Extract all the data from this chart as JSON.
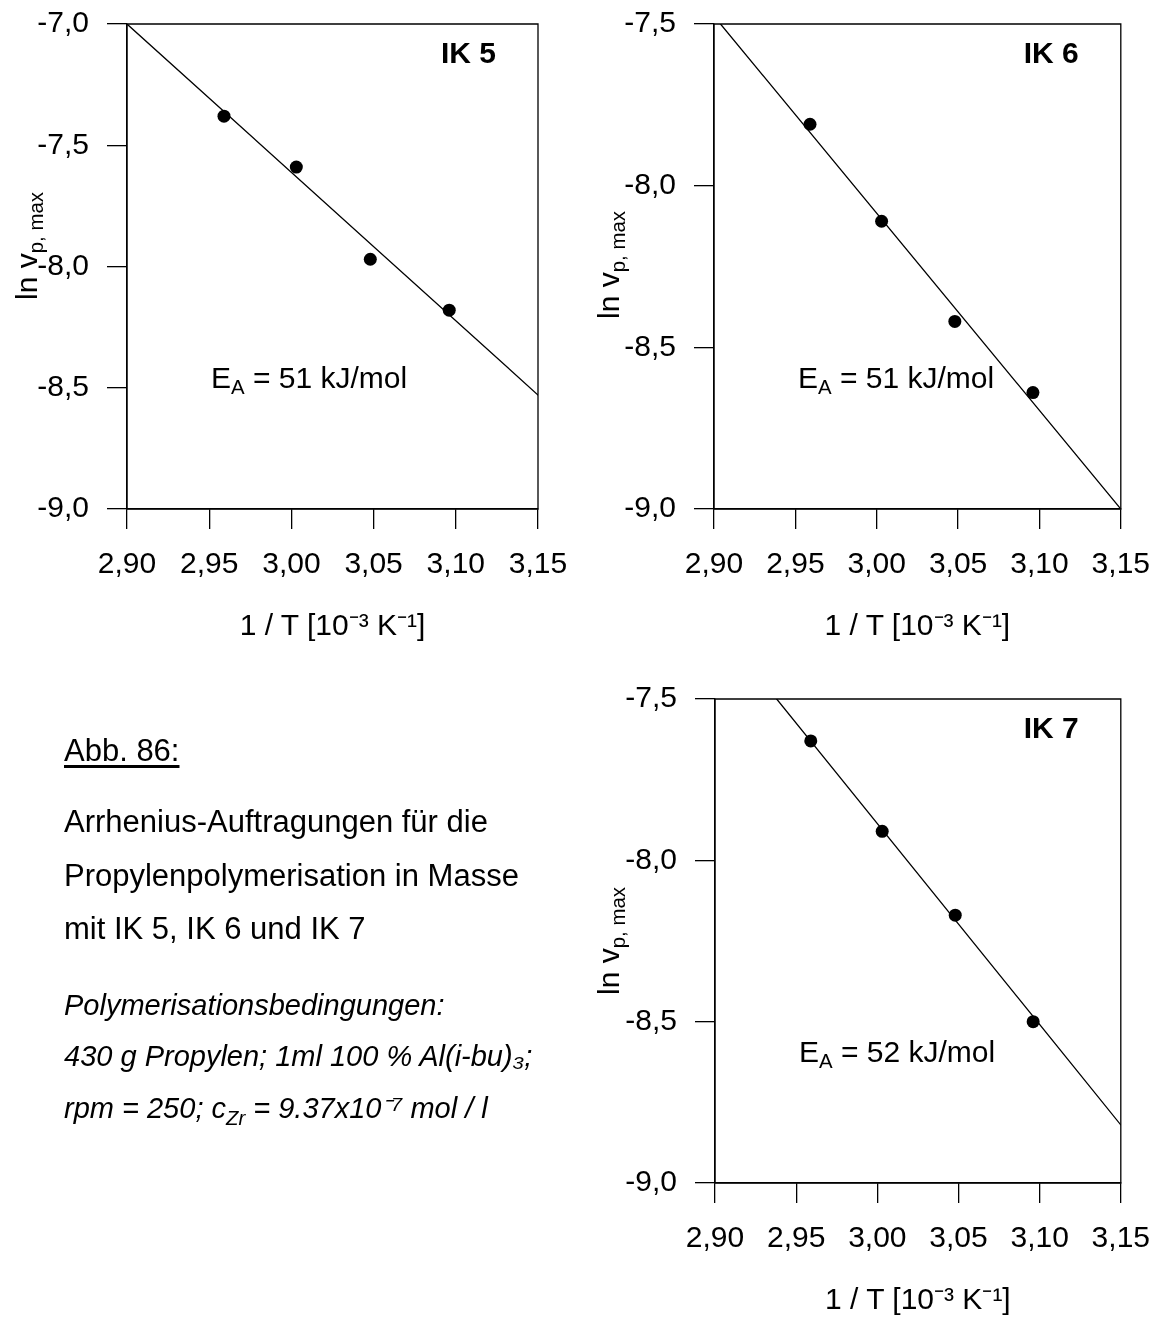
{
  "chart_data": [
    {
      "type": "scatter",
      "title": "IK 5",
      "xlabel": "1 / T [10⁻³ K⁻¹]",
      "ylabel": "ln v$_{p, max}$",
      "annotations": [
        "E$_{A}$ = 51 kJ/mol"
      ],
      "x": [
        2.959,
        3.003,
        3.048,
        3.096
      ],
      "xlim": [
        2.9,
        3.15
      ],
      "xticks": [
        {
          "value": 2.9,
          "label": "2,90"
        },
        {
          "value": 2.95,
          "label": "2,95"
        },
        {
          "value": 3.0,
          "label": "3,00"
        },
        {
          "value": 3.05,
          "label": "3,05"
        },
        {
          "value": 3.1,
          "label": "3,10"
        },
        {
          "value": 3.15,
          "label": "3,15"
        }
      ],
      "ylim": [
        -9.0,
        -7.0
      ],
      "yticks": [
        {
          "value": -7.0,
          "label": "-7,0"
        },
        {
          "value": -7.5,
          "label": "-7,5"
        },
        {
          "value": -8.0,
          "label": "-8,0"
        },
        {
          "value": -8.5,
          "label": "-8,5"
        },
        {
          "value": -9.0,
          "label": "-9,0"
        }
      ],
      "marker": "circle",
      "line_style": "solid",
      "series": [
        {
          "type": "scatter",
          "color": "#000000",
          "values": [
            -7.38,
            -7.59,
            -7.97,
            -8.18
          ]
        },
        {
          "type": "line",
          "color": "#000000",
          "marker": "none",
          "x": [
            2.9,
            3.15
          ],
          "values": [
            -7.0,
            -8.53
          ]
        }
      ]
    },
    {
      "type": "scatter",
      "title": "IK 6",
      "xlabel": "1 / T [10⁻³ K⁻¹]",
      "ylabel": "ln v$_{p, max}$",
      "annotations": [
        "E$_{A}$ = 51 kJ/mol"
      ],
      "x": [
        2.959,
        3.003,
        3.048,
        3.096
      ],
      "xlim": [
        2.9,
        3.15
      ],
      "xticks": [
        {
          "value": 2.9,
          "label": "2,90"
        },
        {
          "value": 2.95,
          "label": "2,95"
        },
        {
          "value": 3.0,
          "label": "3,00"
        },
        {
          "value": 3.05,
          "label": "3,05"
        },
        {
          "value": 3.1,
          "label": "3,10"
        },
        {
          "value": 3.15,
          "label": "3,15"
        }
      ],
      "ylim": [
        -9.0,
        -7.5
      ],
      "yticks": [
        {
          "value": -7.5,
          "label": "-7,5"
        },
        {
          "value": -8.0,
          "label": "-8,0"
        },
        {
          "value": -8.5,
          "label": "-8,5"
        },
        {
          "value": -9.0,
          "label": "-9,0"
        }
      ],
      "marker": "circle",
      "line_style": "solid",
      "series": [
        {
          "type": "scatter",
          "color": "#000000",
          "values": [
            -7.81,
            -8.11,
            -8.42,
            -8.64
          ]
        },
        {
          "type": "line",
          "color": "#000000",
          "marker": "none",
          "x": [
            2.904,
            3.15
          ],
          "values": [
            -7.5,
            -9.0
          ]
        }
      ]
    },
    {
      "type": "scatter",
      "title": "IK 7",
      "xlabel": "1 / T [10⁻³ K⁻¹]",
      "ylabel": "ln v$_{p, max}$",
      "annotations": [
        "E$_{A}$ = 52 kJ/mol"
      ],
      "x": [
        2.959,
        3.003,
        3.048,
        3.096
      ],
      "xlim": [
        2.9,
        3.15
      ],
      "xticks": [
        {
          "value": 2.9,
          "label": "2,90"
        },
        {
          "value": 2.95,
          "label": "2,95"
        },
        {
          "value": 3.0,
          "label": "3,00"
        },
        {
          "value": 3.05,
          "label": "3,05"
        },
        {
          "value": 3.1,
          "label": "3,10"
        },
        {
          "value": 3.15,
          "label": "3,15"
        }
      ],
      "ylim": [
        -9.0,
        -7.5
      ],
      "yticks": [
        {
          "value": -7.5,
          "label": "-7,5"
        },
        {
          "value": -8.0,
          "label": "-8,0"
        },
        {
          "value": -8.5,
          "label": "-8,5"
        },
        {
          "value": -9.0,
          "label": "-9,0"
        }
      ],
      "marker": "circle",
      "line_style": "solid",
      "series": [
        {
          "type": "scatter",
          "color": "#000000",
          "values": [
            -7.63,
            -7.91,
            -8.17,
            -8.5
          ]
        },
        {
          "type": "line",
          "color": "#000000",
          "marker": "none",
          "x": [
            2.938,
            3.15
          ],
          "values": [
            -7.5,
            -8.82
          ]
        }
      ]
    },
    {
      "type": "other",
      "title": "Abb. 86:",
      "subtitle": "Arrhenius-Auftragungen für die Propylenpolymerisation in Masse mit IK 5, IK 6 und IK 7",
      "annotations": [
        "Polymerisationsbedingungen:",
        "430 g Propylen; 1ml 100 % Al(i-bu)₃;",
        "rpm = 250; c$_{Zr}$ = 9.37x10⁻⁷ mol / l"
      ]
    }
  ]
}
